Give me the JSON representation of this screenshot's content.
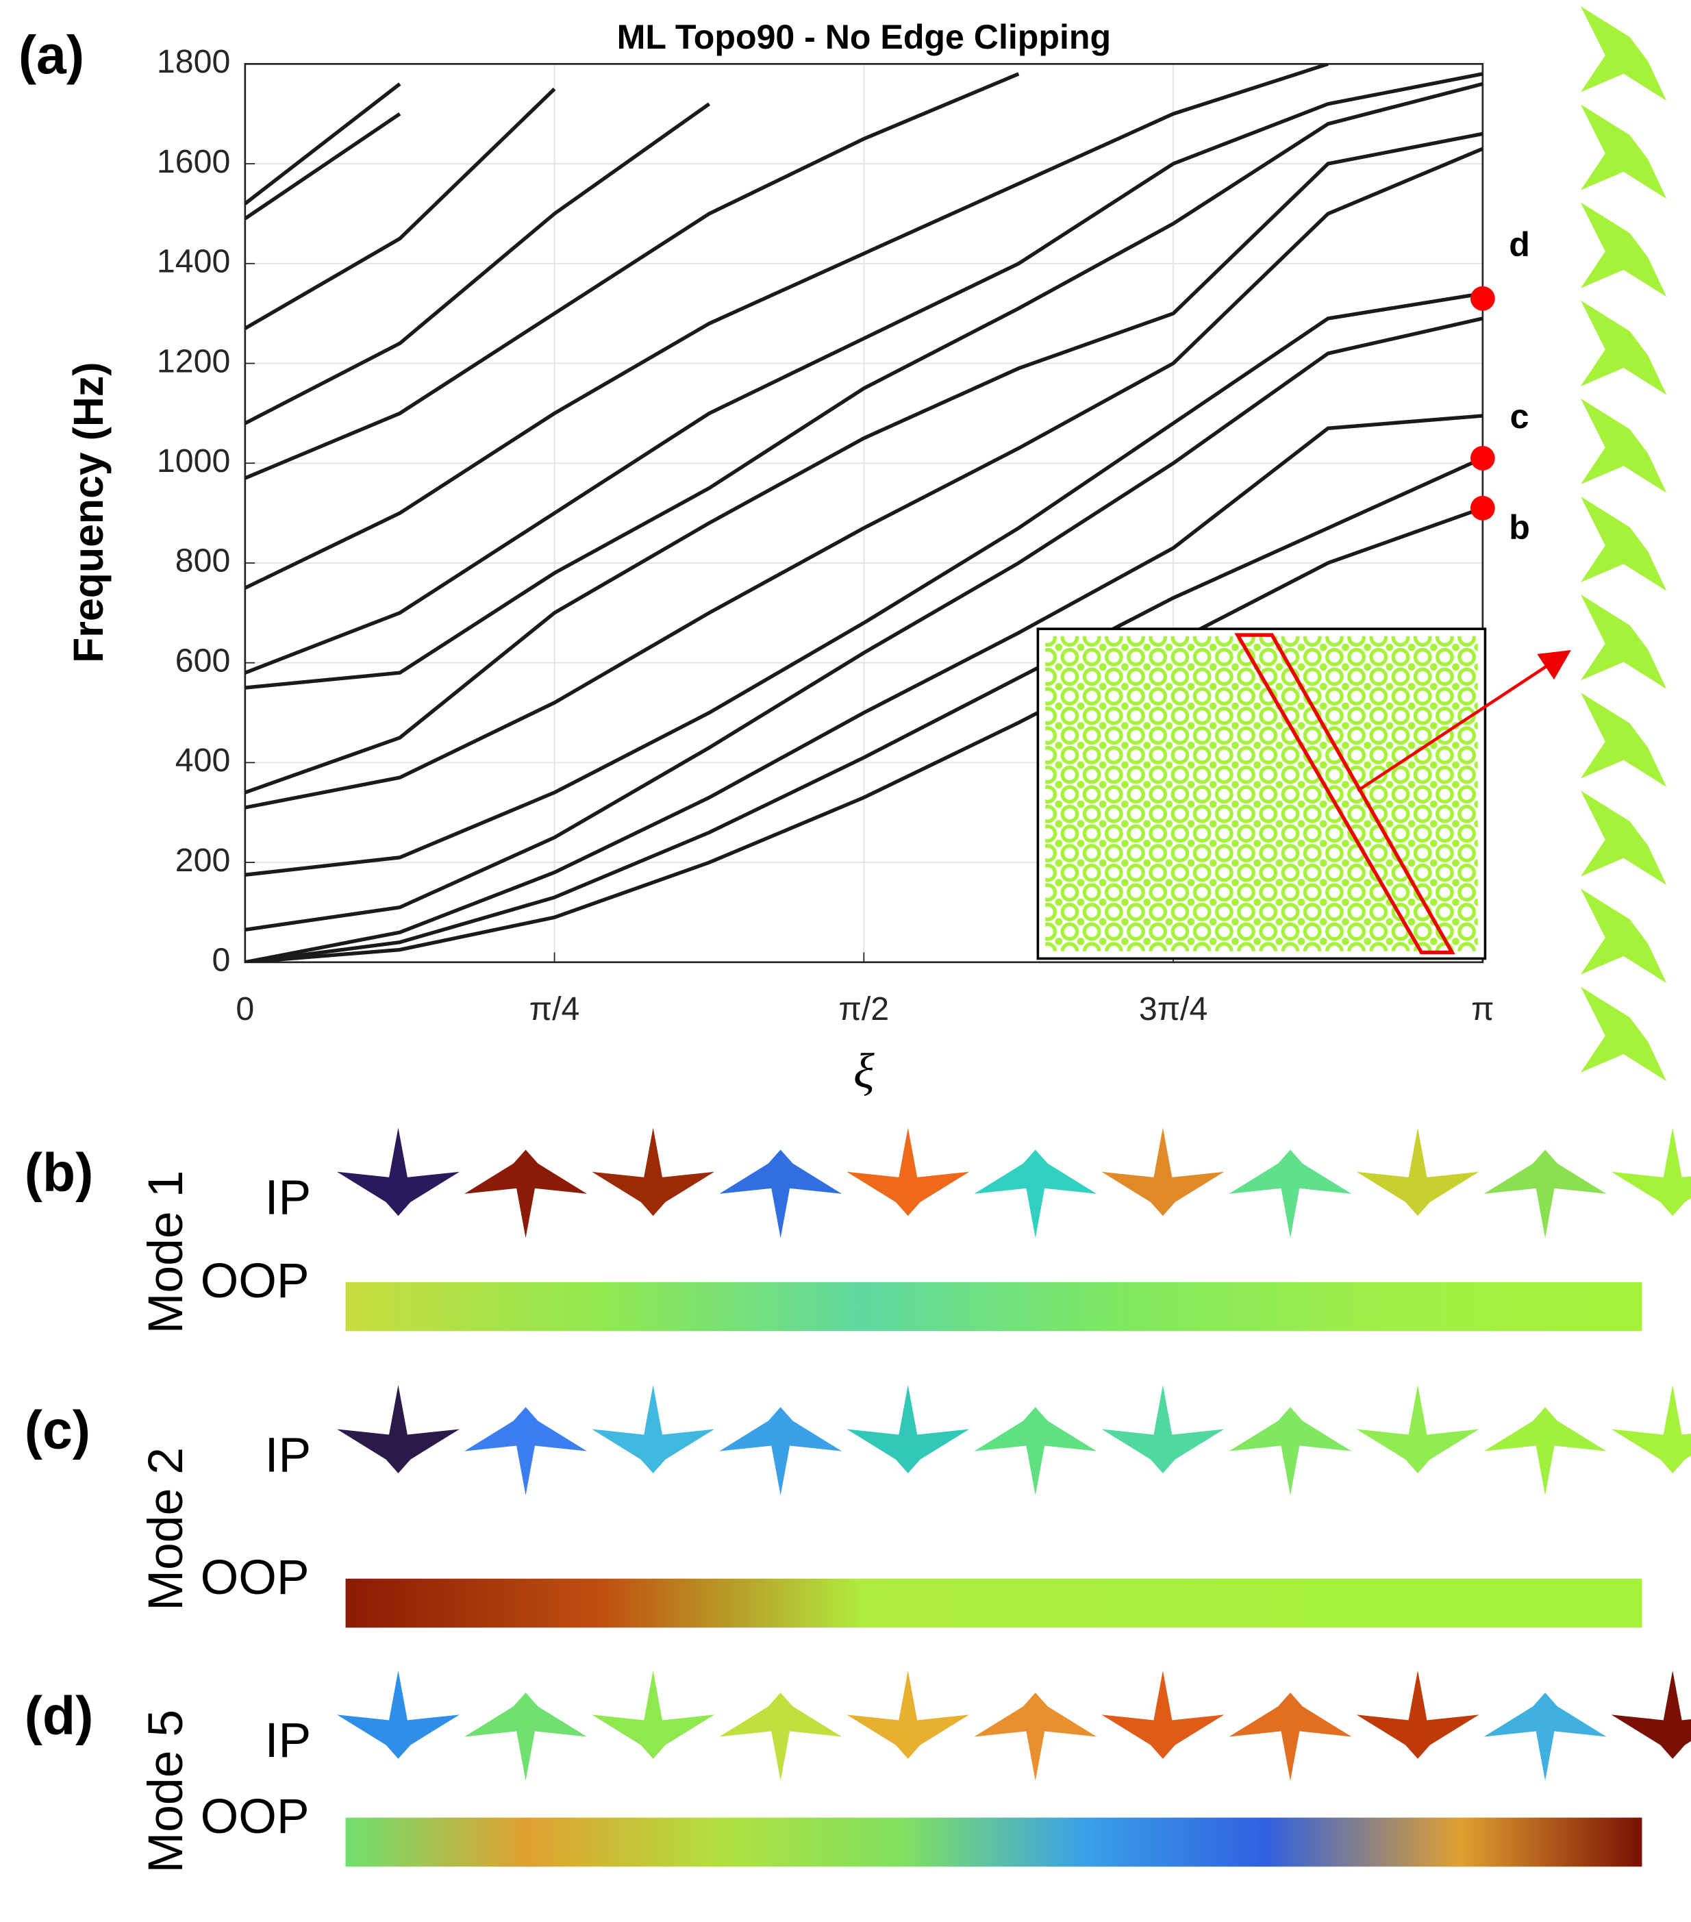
{
  "chart_data": {
    "type": "line",
    "title": "ML Topo90 - No Edge Clipping",
    "xlabel": "ξ",
    "ylabel": "Frequency (Hz)",
    "x": [
      0,
      0.3927,
      0.7854,
      1.1781,
      1.5708,
      1.9635,
      2.3562,
      2.7489,
      3.1416
    ],
    "xlim": [
      0,
      3.1416
    ],
    "xticks": [
      0,
      {
        "value": 0.7854,
        "label": "π/4"
      },
      {
        "value": 1.5708,
        "label": "π/2"
      },
      {
        "value": 2.3562,
        "label": "3π/4"
      },
      {
        "value": 3.1416,
        "label": "π"
      }
    ],
    "ylim": [
      0,
      1800
    ],
    "yticks": [
      0,
      200,
      400,
      600,
      800,
      1000,
      1200,
      1400,
      1600,
      1800
    ],
    "grid": true,
    "color": "#1a1a1a",
    "series": [
      {
        "values": [
          0,
          25,
          90,
          200,
          330,
          480,
          640,
          800,
          910
        ]
      },
      {
        "values": [
          0,
          40,
          130,
          260,
          410,
          570,
          730,
          870,
          1010
        ]
      },
      {
        "values": [
          0,
          60,
          180,
          330,
          500,
          660,
          830,
          1070,
          1095
        ]
      },
      {
        "values": [
          65,
          110,
          250,
          430,
          620,
          800,
          1000,
          1220,
          1290
        ]
      },
      {
        "values": [
          175,
          210,
          340,
          500,
          680,
          870,
          1080,
          1290,
          1340
        ]
      },
      {
        "values": [
          310,
          370,
          520,
          700,
          870,
          1030,
          1200,
          1500,
          1630
        ]
      },
      {
        "values": [
          340,
          450,
          700,
          880,
          1050,
          1190,
          1300,
          1600,
          1660
        ]
      },
      {
        "values": [
          550,
          580,
          780,
          950,
          1150,
          1310,
          1480,
          1680,
          1760
        ]
      },
      {
        "values": [
          580,
          700,
          900,
          1100,
          1250,
          1400,
          1600,
          1720,
          1780
        ]
      },
      {
        "values": [
          750,
          900,
          1100,
          1280,
          1420,
          1560,
          1700,
          1800,
          null
        ]
      },
      {
        "values": [
          970,
          1100,
          1300,
          1500,
          1650,
          1780,
          null,
          null,
          null
        ]
      },
      {
        "values": [
          1080,
          1240,
          1500,
          1720,
          null,
          null,
          null,
          null,
          null
        ]
      },
      {
        "values": [
          1270,
          1450,
          1750,
          null,
          null,
          null,
          null,
          null,
          null
        ]
      },
      {
        "values": [
          1490,
          1700,
          null,
          null,
          null,
          null,
          null,
          null,
          null
        ]
      },
      {
        "values": [
          1520,
          1760,
          null,
          null,
          null,
          null,
          null,
          null,
          null
        ]
      }
    ],
    "markers": {
      "x": 3.1416,
      "values": [
        910,
        1010,
        1330
      ],
      "labels": [
        "b",
        "c",
        "d"
      ],
      "color": "#ff0000"
    }
  },
  "panel_label": "(a)",
  "modes": [
    {
      "label": "(b)",
      "name": "Mode 1",
      "rows": [
        "IP",
        "OOP"
      ]
    },
    {
      "label": "(c)",
      "name": "Mode 2",
      "rows": [
        "IP",
        "OOP"
      ]
    },
    {
      "label": "(d)",
      "name": "Mode 5",
      "rows": [
        "IP",
        "OOP"
      ]
    }
  ]
}
